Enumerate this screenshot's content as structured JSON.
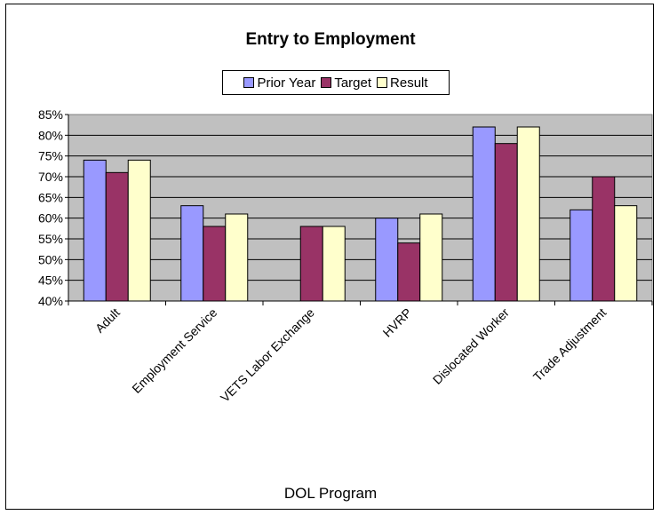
{
  "chart_data": {
    "type": "bar",
    "title": "Entry to Employment",
    "xlabel": "DOL Program",
    "ylabel": "",
    "categories": [
      "Adult",
      "Employment Service",
      "VETS Labor Exchange",
      "HVRP",
      "Dislocated Worker",
      "Trade Adjustment"
    ],
    "series": [
      {
        "name": "Prior Year",
        "color": "#9999ff",
        "values": [
          74,
          63,
          null,
          60,
          82,
          62
        ]
      },
      {
        "name": "Target",
        "color": "#993366",
        "values": [
          71,
          58,
          58,
          54,
          78,
          70
        ]
      },
      {
        "name": "Result",
        "color": "#ffffcc",
        "values": [
          74,
          61,
          58,
          61,
          82,
          63
        ]
      }
    ],
    "ylim": [
      40,
      85
    ],
    "yticks": [
      "40%",
      "45%",
      "50%",
      "55%",
      "60%",
      "65%",
      "70%",
      "75%",
      "80%",
      "85%"
    ],
    "grid": true,
    "legend": "top",
    "plot_background": "#c0c0c0"
  }
}
